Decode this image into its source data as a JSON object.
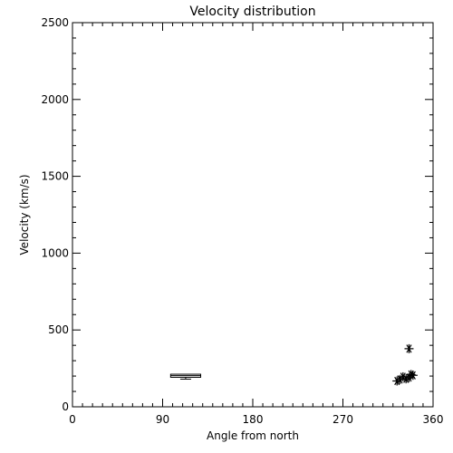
{
  "chart_data": {
    "type": "scatter",
    "title": "Velocity distribution",
    "xlabel": "Angle from north",
    "ylabel": "Velocity (km/s)",
    "xlim": [
      0,
      360
    ],
    "ylim": [
      0,
      2500
    ],
    "x_major_ticks": [
      0,
      90,
      180,
      270,
      360
    ],
    "x_tick_labels": [
      "0",
      "90",
      "180",
      "270",
      "360"
    ],
    "y_major_ticks": [
      0,
      500,
      1000,
      1500,
      2000,
      2500
    ],
    "y_tick_labels": [
      "0",
      "500",
      "1000",
      "1500",
      "2000",
      "2500"
    ],
    "grid": false,
    "colors": {
      "axis": "#000000",
      "marks": "#000000",
      "background": "#ffffff"
    },
    "box": {
      "x_center": 113,
      "x_halfwidth": 15,
      "q1": 192,
      "q3": 212,
      "median": 203,
      "whisker_low": 180,
      "whisker_high": 212
    },
    "points": [
      {
        "x": 324,
        "y": 168
      },
      {
        "x": 327,
        "y": 178
      },
      {
        "x": 330,
        "y": 195
      },
      {
        "x": 333,
        "y": 182
      },
      {
        "x": 336,
        "y": 190
      },
      {
        "x": 338,
        "y": 210
      },
      {
        "x": 340,
        "y": 205
      },
      {
        "x": 336,
        "y": 378
      }
    ],
    "marker": "asterisk"
  }
}
